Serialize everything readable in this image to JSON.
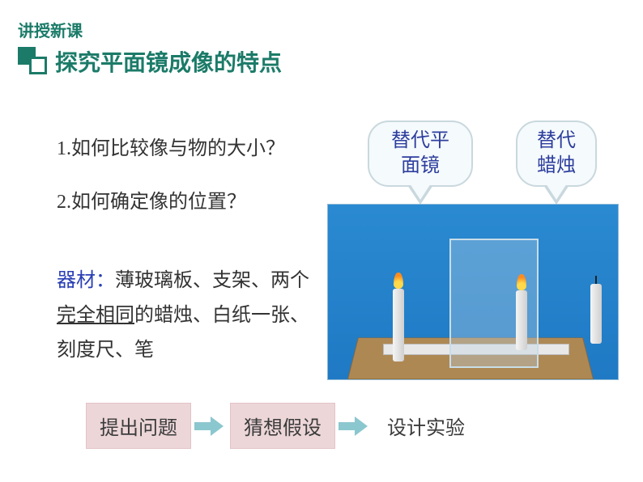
{
  "header": {
    "label": "讲授新课"
  },
  "title": {
    "text": "探究平面镜成像的特点"
  },
  "questions": {
    "q1": "1.如何比较像与物的大小？",
    "q2": "2.如何确定像的位置？"
  },
  "materials": {
    "label": "器材：",
    "line1a": "薄玻璃板、支架、两个",
    "highlight": "完全相同",
    "line1b": "的蜡烛、白纸一张、刻度尺、笔"
  },
  "callouts": {
    "mirror_l1": "替代平",
    "mirror_l2": "面镜",
    "candle_l1": "替代",
    "candle_l2": "蜡烛"
  },
  "steps": {
    "s1": "提出问题",
    "s2": "猜想假设",
    "s3": "设计实验"
  },
  "colors": {
    "brand": "#1b7b68",
    "callout_text": "#2e3e9e",
    "materials_label": "#2a3fb5",
    "step_bg": "#ecd6d8",
    "arrow": "#8bc7ce",
    "diagram_bg_top": "#2a8ad1",
    "diagram_bg_bottom": "#1f79c4",
    "board": "#ae8853"
  },
  "diagram": {
    "type": "infographic",
    "elements": [
      "glass-plate",
      "wooden-board",
      "ruler",
      "lit-candle",
      "image-candle",
      "unlit-candle"
    ]
  }
}
